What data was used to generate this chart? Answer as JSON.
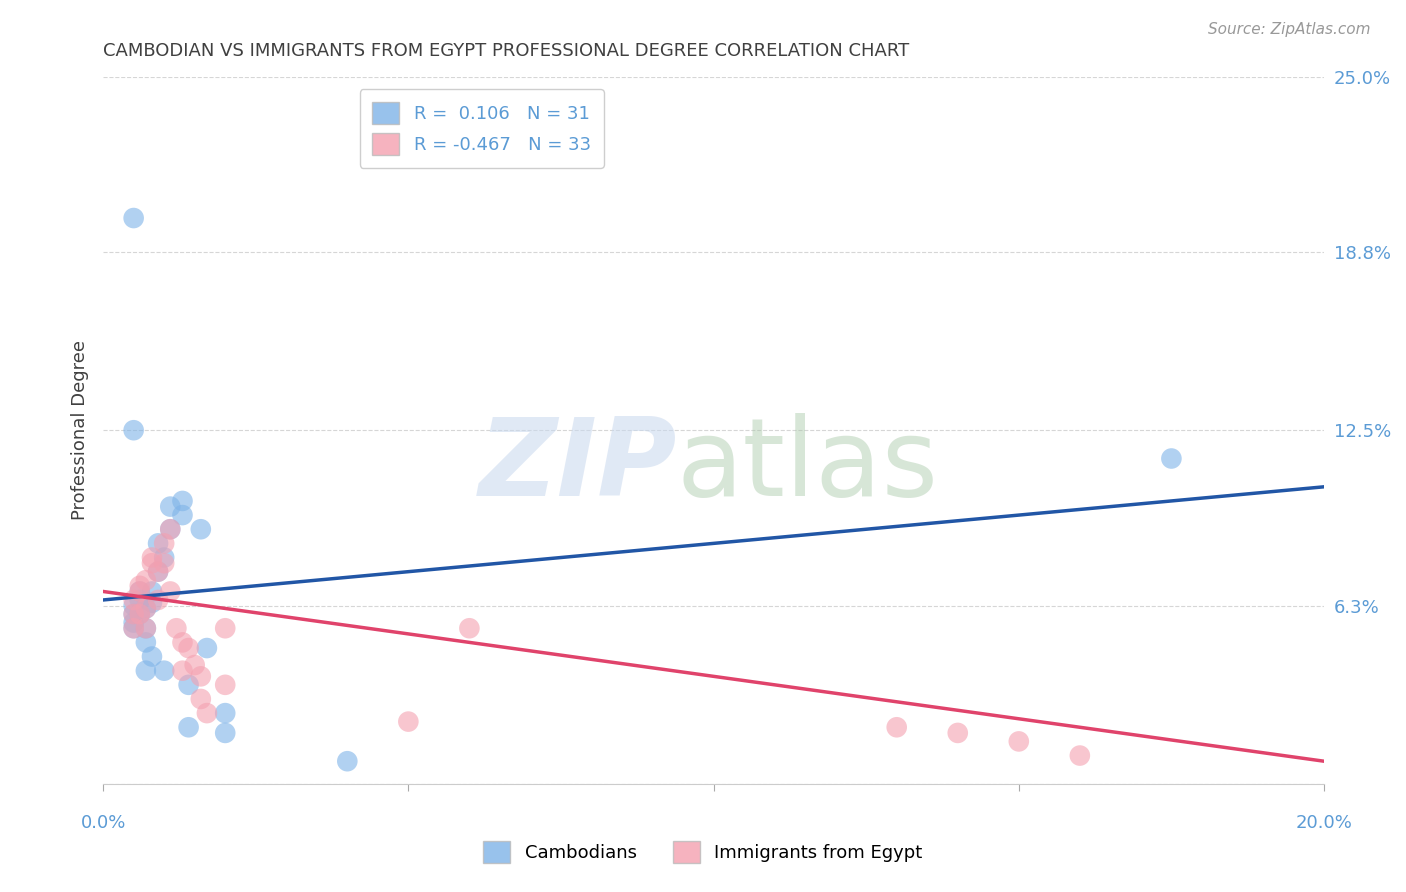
{
  "title": "CAMBODIAN VS IMMIGRANTS FROM EGYPT PROFESSIONAL DEGREE CORRELATION CHART",
  "source": "Source: ZipAtlas.com",
  "ylabel": "Professional Degree",
  "xlim": [
    0.0,
    0.2
  ],
  "ylim": [
    0.0,
    0.25
  ],
  "yticks": [
    0.0,
    0.063,
    0.125,
    0.188,
    0.25
  ],
  "ytick_labels": [
    "",
    "6.3%",
    "12.5%",
    "18.8%",
    "25.0%"
  ],
  "xticks": [
    0.0,
    0.05,
    0.1,
    0.15,
    0.2
  ],
  "legend_labels": [
    "Cambodians",
    "Immigrants from Egypt"
  ],
  "blue_color": "#7EB3E8",
  "pink_color": "#F4A0B0",
  "blue_line_color": "#2156A6",
  "pink_line_color": "#E0436B",
  "background_color": "#FFFFFF",
  "grid_color": "#CCCCCC",
  "axis_label_color": "#5B9BD5",
  "title_color": "#404040",
  "blue_line_y0": 0.065,
  "blue_line_y1": 0.105,
  "pink_line_y0": 0.068,
  "pink_line_y1": 0.008,
  "cambodian_x": [
    0.005,
    0.005,
    0.005,
    0.005,
    0.005,
    0.005,
    0.006,
    0.006,
    0.006,
    0.007,
    0.007,
    0.007,
    0.007,
    0.008,
    0.008,
    0.008,
    0.009,
    0.009,
    0.01,
    0.01,
    0.011,
    0.011,
    0.013,
    0.013,
    0.014,
    0.014,
    0.016,
    0.017,
    0.02,
    0.02,
    0.04,
    0.175
  ],
  "cambodian_y": [
    0.2,
    0.06,
    0.063,
    0.057,
    0.055,
    0.125,
    0.068,
    0.065,
    0.06,
    0.062,
    0.055,
    0.05,
    0.04,
    0.068,
    0.064,
    0.045,
    0.075,
    0.085,
    0.08,
    0.04,
    0.098,
    0.09,
    0.1,
    0.095,
    0.035,
    0.02,
    0.09,
    0.048,
    0.025,
    0.018,
    0.008,
    0.115
  ],
  "egypt_x": [
    0.005,
    0.005,
    0.005,
    0.006,
    0.006,
    0.006,
    0.007,
    0.007,
    0.007,
    0.008,
    0.008,
    0.009,
    0.009,
    0.01,
    0.01,
    0.011,
    0.011,
    0.012,
    0.013,
    0.013,
    0.014,
    0.015,
    0.016,
    0.016,
    0.017,
    0.02,
    0.02,
    0.05,
    0.06,
    0.13,
    0.14,
    0.15,
    0.16
  ],
  "egypt_y": [
    0.065,
    0.06,
    0.055,
    0.07,
    0.068,
    0.06,
    0.072,
    0.062,
    0.055,
    0.08,
    0.078,
    0.075,
    0.065,
    0.085,
    0.078,
    0.09,
    0.068,
    0.055,
    0.05,
    0.04,
    0.048,
    0.042,
    0.038,
    0.03,
    0.025,
    0.035,
    0.055,
    0.022,
    0.055,
    0.02,
    0.018,
    0.015,
    0.01
  ]
}
